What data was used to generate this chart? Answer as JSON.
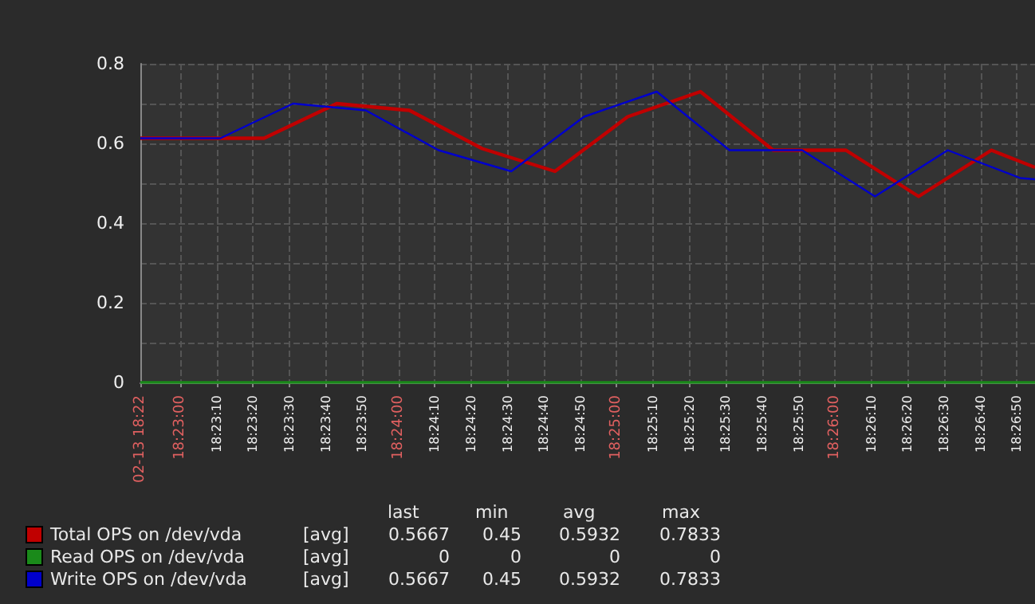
{
  "chart_data": {
    "type": "line",
    "xlim": [
      18.380278,
      18.448611
    ],
    "xticks": [
      {
        "value": 18.380278,
        "label": "02-13 18:22"
      },
      {
        "value": 18.383333,
        "label": "18:23:00"
      },
      {
        "value": 18.386111,
        "label": "18:23:10"
      },
      {
        "value": 18.388889,
        "label": "18:23:20"
      },
      {
        "value": 18.391667,
        "label": "18:23:30"
      },
      {
        "value": 18.394444,
        "label": "18:23:40"
      },
      {
        "value": 18.397222,
        "label": "18:23:50"
      },
      {
        "value": 18.4,
        "label": "18:24:00"
      },
      {
        "value": 18.402778,
        "label": "18:24:10"
      },
      {
        "value": 18.405556,
        "label": "18:24:20"
      },
      {
        "value": 18.408333,
        "label": "18:24:30"
      },
      {
        "value": 18.411111,
        "label": "18:24:40"
      },
      {
        "value": 18.413889,
        "label": "18:24:50"
      },
      {
        "value": 18.416667,
        "label": "18:25:00"
      },
      {
        "value": 18.419444,
        "label": "18:25:10"
      },
      {
        "value": 18.422222,
        "label": "18:25:20"
      },
      {
        "value": 18.425,
        "label": "18:25:30"
      },
      {
        "value": 18.427778,
        "label": "18:25:40"
      },
      {
        "value": 18.430556,
        "label": "18:25:50"
      },
      {
        "value": 18.433333,
        "label": "18:26:00"
      },
      {
        "value": 18.436111,
        "label": "18:26:10"
      },
      {
        "value": 18.438889,
        "label": "18:26:20"
      },
      {
        "value": 18.441667,
        "label": "18:26:30"
      },
      {
        "value": 18.444444,
        "label": "18:26:40"
      },
      {
        "value": 18.447222,
        "label": "18:26:50"
      }
    ],
    "ylim": [
      0,
      0.8
    ],
    "yticks": [
      0,
      {
        "value": 0.1,
        "label": null
      },
      0.2,
      {
        "value": 0.3,
        "label": null
      },
      0.4,
      {
        "value": 0.5,
        "label": null
      },
      0.6,
      {
        "value": 0.7,
        "label": null
      },
      0.8
    ],
    "grid": true,
    "legend": "bottom left",
    "marker": "none",
    "line_style": "solid",
    "series": [
      {
        "name": "Total OPS on /dev/vda",
        "color": "#c00000",
        "x": [
          18.380278,
          18.389722,
          18.395278,
          18.400833,
          18.406389,
          18.411944,
          18.4175,
          18.423056,
          18.428611,
          18.434167,
          18.439722,
          18.445278,
          18.448611
        ],
        "values": [
          0.613,
          0.613,
          0.7,
          0.683,
          0.587,
          0.53,
          0.667,
          0.73,
          0.583,
          0.583,
          0.467,
          0.583,
          0.54
        ]
      },
      {
        "name": "Read OPS on /dev/vda",
        "color": "#1a8a1a",
        "x": [
          18.380278,
          18.448611
        ],
        "values": [
          0,
          0
        ]
      },
      {
        "name": "Write OPS on /dev/vda",
        "color": "#0000cc",
        "x": [
          18.380278,
          18.386389,
          18.391944,
          18.3975,
          18.403056,
          18.408611,
          18.414167,
          18.419722,
          18.425278,
          18.430833,
          18.436389,
          18.441944,
          18.4475,
          18.448611
        ],
        "values": [
          0.613,
          0.613,
          0.7,
          0.683,
          0.583,
          0.53,
          0.667,
          0.73,
          0.583,
          0.583,
          0.467,
          0.583,
          0.513,
          0.51
        ]
      }
    ],
    "annotations": [
      "last",
      "min",
      "avg",
      "max",
      "[avg]",
      "0.5667",
      "0.45",
      "0.5932",
      "0.7833",
      "[avg]",
      "0",
      "0",
      "0",
      "0",
      "[avg]",
      "0.5667",
      "0.45",
      "0.5932",
      "0.7833"
    ]
  }
}
